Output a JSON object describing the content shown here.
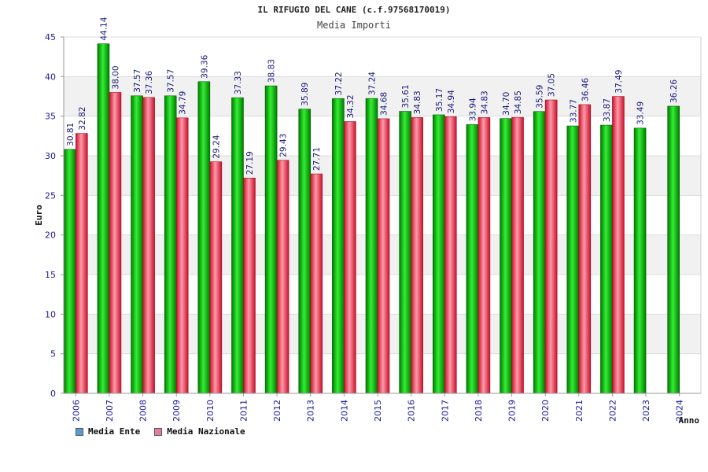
{
  "title": "IL RIFUGIO DEL CANE (c.f.97568170019)",
  "subtitle": "Media Importi",
  "legend": {
    "ente_label": "Media Ente",
    "nazionale_label": "Media Nazionale",
    "ente_swatch_color": "#5b9bd5",
    "nazionale_swatch_color": "#e87aa0"
  },
  "chart_data": {
    "type": "bar",
    "title": "IL RIFUGIO DEL CANE (c.f.97568170019)",
    "subtitle": "Media Importi",
    "xlabel": "Anno",
    "ylabel": "Euro",
    "ylim": [
      0,
      45
    ],
    "yticks": [
      0,
      5,
      10,
      15,
      20,
      25,
      30,
      35,
      40,
      45
    ],
    "grid": true,
    "legend_position": "bottom-left",
    "categories": [
      "2006",
      "2007",
      "2008",
      "2009",
      "2010",
      "2011",
      "2012",
      "2013",
      "2014",
      "2015",
      "2016",
      "2017",
      "2018",
      "2019",
      "2020",
      "2021",
      "2022",
      "2023",
      "2024"
    ],
    "series": [
      {
        "name": "Media Ente",
        "color": "#00aa00",
        "values": [
          30.81,
          44.14,
          37.57,
          37.57,
          39.36,
          37.33,
          38.83,
          35.89,
          37.22,
          37.24,
          35.61,
          35.17,
          33.94,
          34.7,
          35.59,
          33.77,
          33.87,
          33.49,
          36.26
        ],
        "labels": [
          "30.81",
          "44.14",
          "37.57",
          "37.57",
          "39.36",
          "37.33",
          "38.83",
          "35.89",
          "37.22",
          "37.24",
          "35.61",
          "35.17",
          "33.94",
          "34.70",
          "35.59",
          "33.77",
          "33.87",
          "33.49",
          "36.26"
        ]
      },
      {
        "name": "Media Nazionale",
        "color": "#ee2233",
        "values": [
          32.82,
          38.0,
          37.36,
          34.79,
          29.24,
          27.19,
          29.43,
          27.71,
          34.32,
          34.68,
          34.83,
          34.94,
          34.83,
          34.85,
          37.05,
          36.46,
          37.49,
          null,
          null
        ],
        "labels": [
          "32.82",
          "38.00",
          "37.36",
          "34.79",
          "29.24",
          "27.19",
          "29.43",
          "27.71",
          "34.32",
          "34.68",
          "34.83",
          "34.94",
          "34.83",
          "34.85",
          "37.05",
          "36.46",
          "37.49",
          null,
          null
        ]
      }
    ]
  }
}
